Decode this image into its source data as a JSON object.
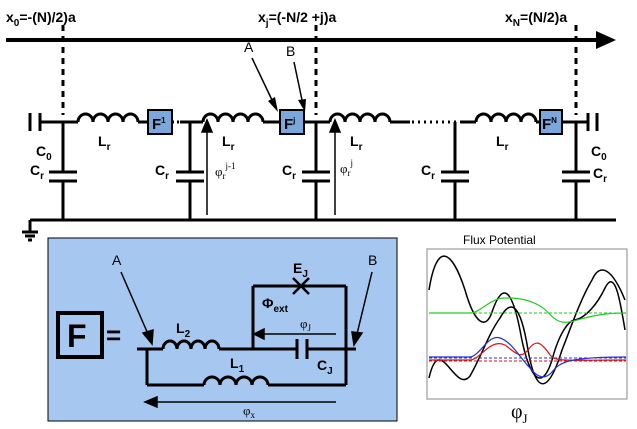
{
  "top_axis": {
    "x0_label": "x",
    "x0_sub": "0",
    "x0_expr": "=-(N)/2)a",
    "xj_label": "x",
    "xj_sub": "j",
    "xj_expr": "=(-N/2 +j)a",
    "xN_label": "x",
    "xN_sub": "N",
    "xN_expr": "=(N/2)a"
  },
  "markers": {
    "A": "A",
    "B": "B"
  },
  "ladder": {
    "C0_left": "C",
    "C0_left_sub": "0",
    "C0_right": "C",
    "C0_right_sub": "0",
    "Cr": "C",
    "Cr_sub": "r",
    "Lr": "L",
    "Lr_sub": "r",
    "F1": "F",
    "F1_sup": "1",
    "Fj": "F",
    "Fj_sup": "j",
    "FN": "F",
    "FN_sup": "N",
    "phi_prev": "φ",
    "phi_prev_sub": "r",
    "phi_prev_sup": "j-1",
    "phi_j": "φ",
    "phi_j_sub": "r",
    "phi_j_sup": "j"
  },
  "inset": {
    "F_symbol": "F",
    "equals": "=",
    "A": "A",
    "B": "B",
    "EJ": "E",
    "EJ_sub": "J",
    "Phi_ext": "Φ",
    "Phi_ext_sub": "ext",
    "phiJ": "φ",
    "phiJ_sub": "J",
    "L2": "L",
    "L2_sub": "2",
    "L1": "L",
    "L1_sub": "1",
    "CJ": "C",
    "CJ_sub": "J",
    "phix": "φ",
    "phix_sub": "x"
  },
  "plot": {
    "title": "Flux Potential",
    "xlabel": "φ",
    "xlabel_sub": "J"
  },
  "colors": {
    "inset_bg": "#a6c8f0",
    "box_fill": "#7ba7dd",
    "green": "#22cc22",
    "red": "#dd1111",
    "blue": "#2233dd",
    "black": "#000000"
  }
}
